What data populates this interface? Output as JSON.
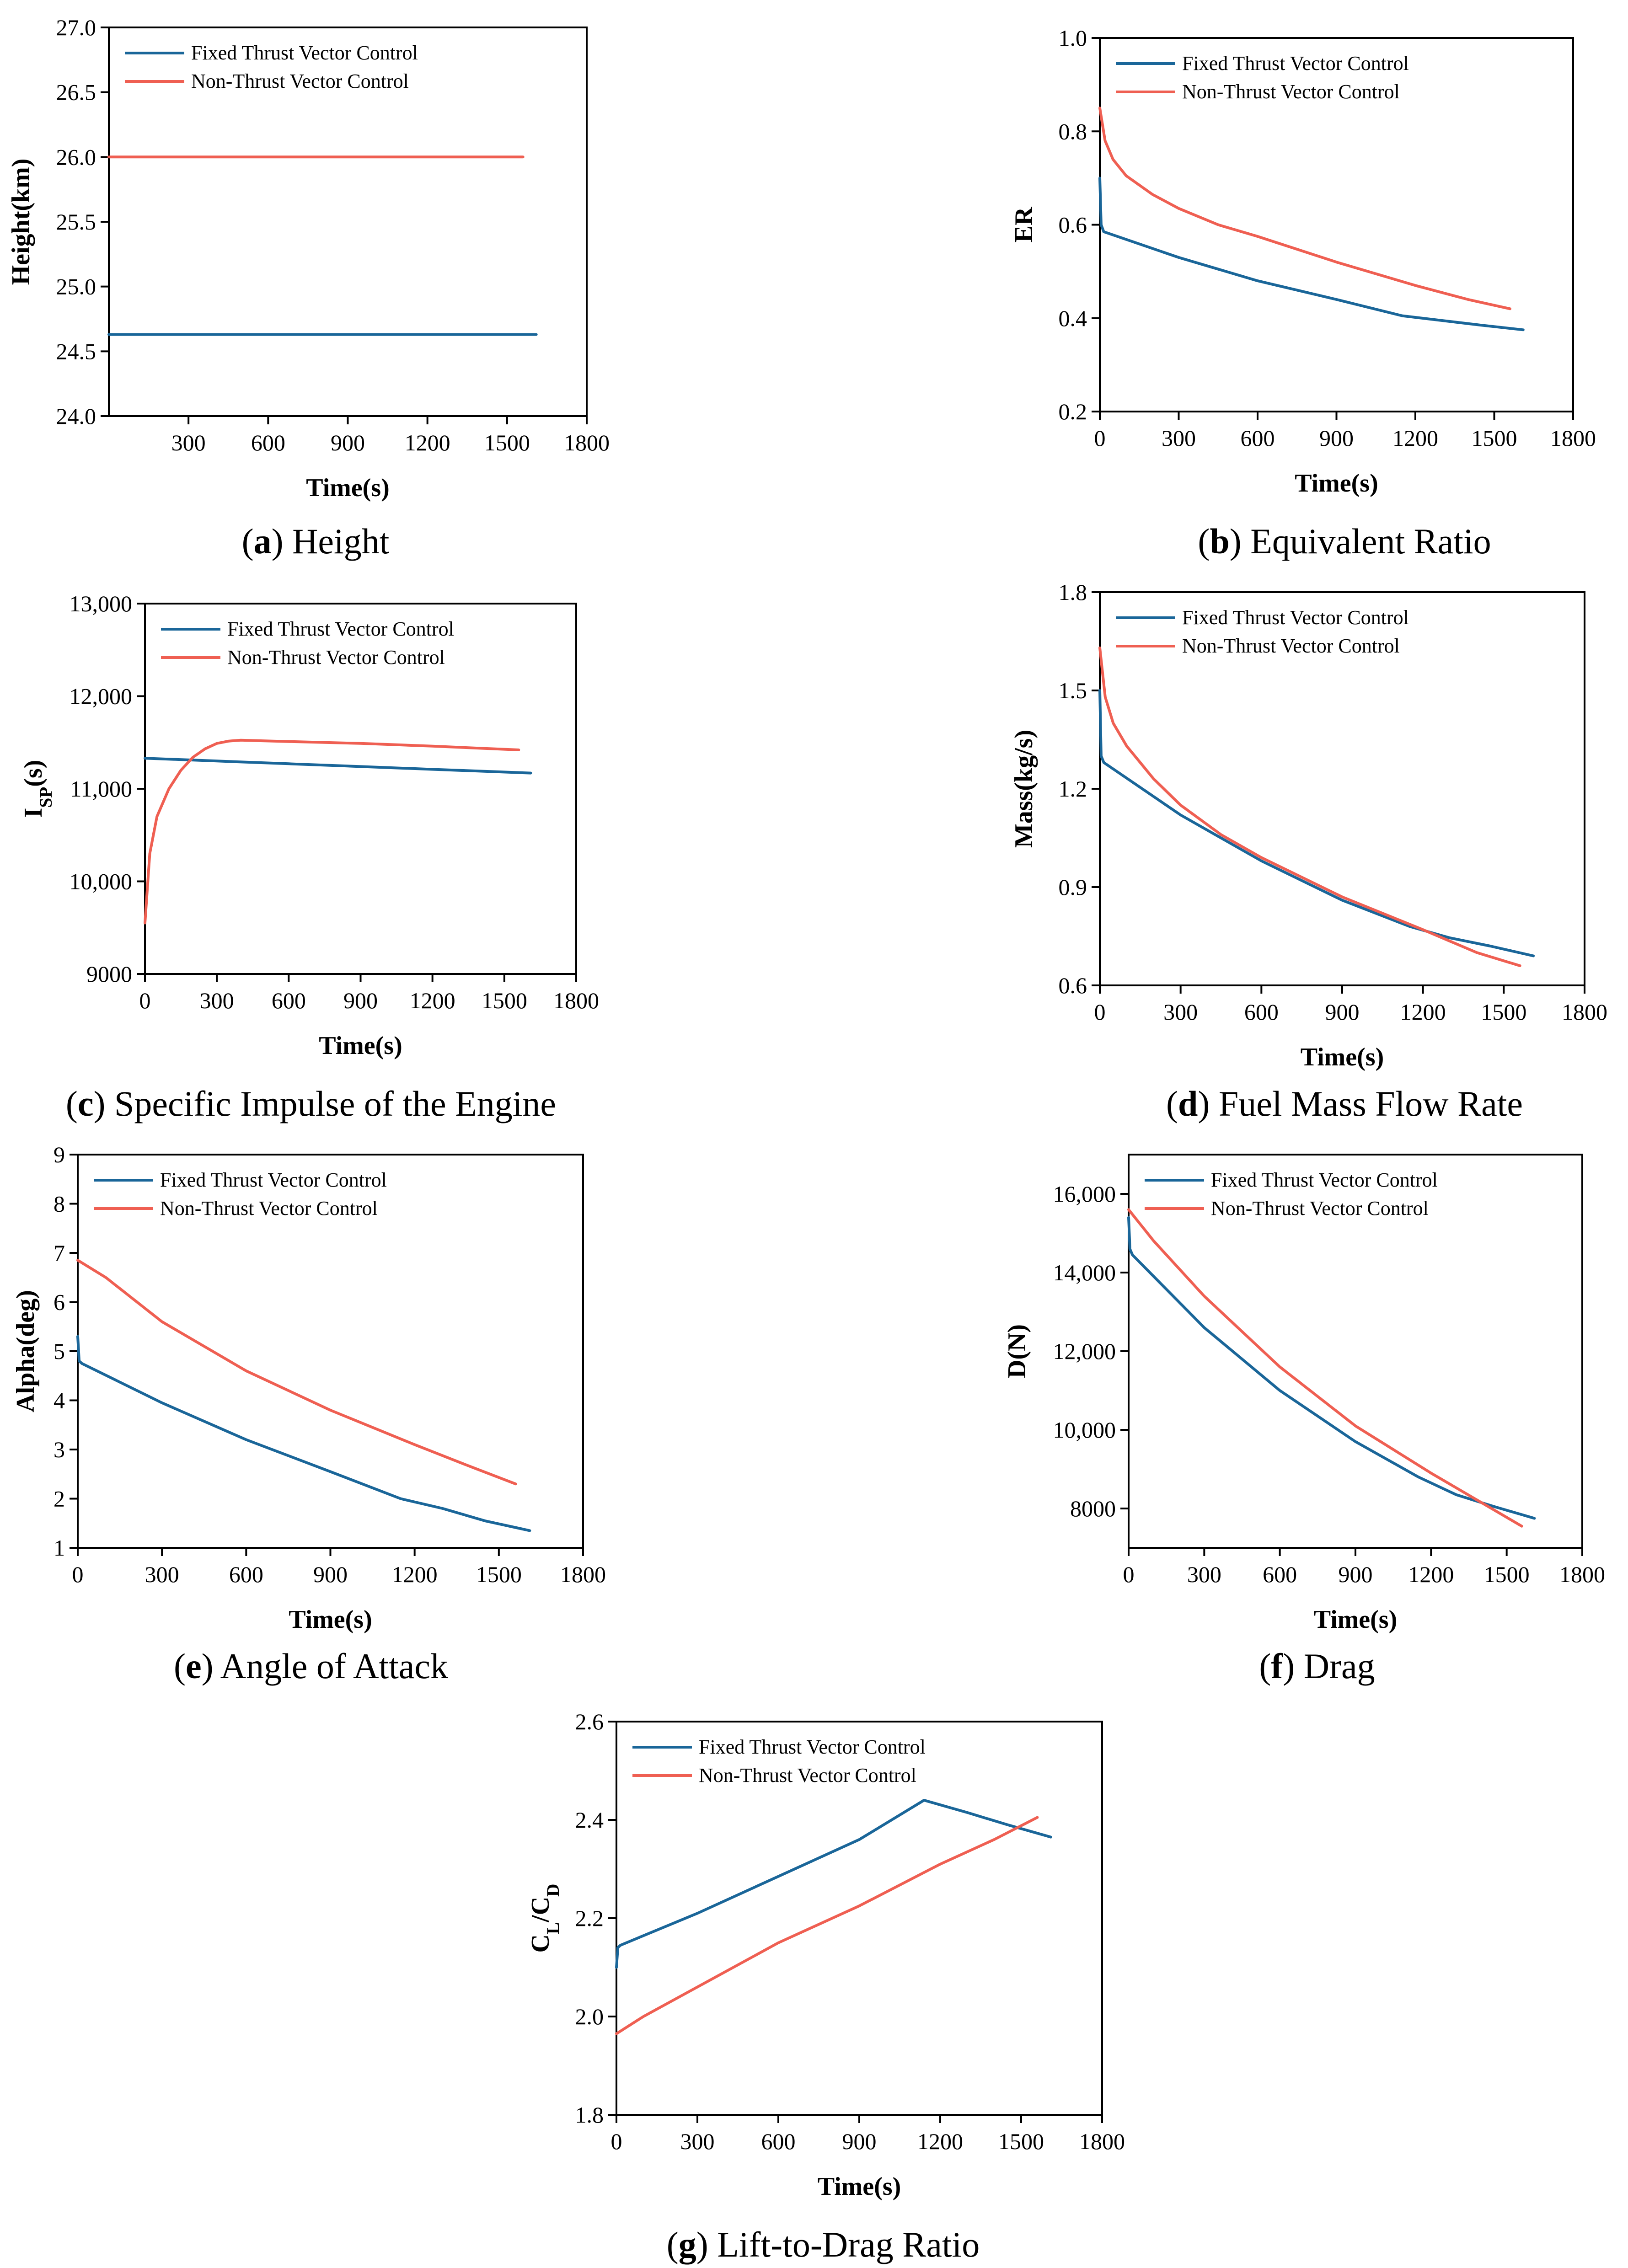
{
  "legend_labels": [
    "Fixed Thrust Vector Control",
    "Non-Thrust Vector Control"
  ],
  "colors": {
    "fixed": "#1a6699",
    "non": "#ef5f52",
    "axis": "#000000"
  },
  "chart_data": [
    {
      "id": "a",
      "type": "line",
      "caption_letter": "(a)",
      "caption_text": " Height",
      "xlabel": "Time(s)",
      "ylabel": "Height(km)",
      "xlim": [
        0,
        1800
      ],
      "ylim": [
        24.0,
        27.0
      ],
      "xticks": [
        {
          "v": 300,
          "label": "300"
        },
        {
          "v": 600,
          "label": "600"
        },
        {
          "v": 900,
          "label": "900"
        },
        {
          "v": 1200,
          "label": "1200"
        },
        {
          "v": 1500,
          "label": "1500"
        },
        {
          "v": 1800,
          "label": "1800"
        }
      ],
      "yticks": [
        {
          "v": 24.0,
          "label": "24.0"
        },
        {
          "v": 24.5,
          "label": "24.5"
        },
        {
          "v": 25.0,
          "label": "25.0"
        },
        {
          "v": 25.5,
          "label": "25.5"
        },
        {
          "v": 26.0,
          "label": "26.0"
        },
        {
          "v": 26.5,
          "label": "26.5"
        },
        {
          "v": 27.0,
          "label": "27.0"
        }
      ],
      "legend": "top-left",
      "series": [
        {
          "name": "Fixed Thrust Vector Control",
          "x": [
            0,
            1610
          ],
          "y": [
            24.63,
            24.63
          ]
        },
        {
          "name": "Non-Thrust Vector Control",
          "x": [
            0,
            1560
          ],
          "y": [
            26.0,
            26.0
          ]
        }
      ]
    },
    {
      "id": "b",
      "type": "line",
      "caption_letter": "(b)",
      "caption_text": " Equivalent Ratio",
      "xlabel": "Time(s)",
      "ylabel": "ER",
      "xlim": [
        0,
        1800
      ],
      "ylim": [
        0.2,
        1.0
      ],
      "xticks": [
        {
          "v": 0,
          "label": "0"
        },
        {
          "v": 300,
          "label": "300"
        },
        {
          "v": 600,
          "label": "600"
        },
        {
          "v": 900,
          "label": "900"
        },
        {
          "v": 1200,
          "label": "1200"
        },
        {
          "v": 1500,
          "label": "1500"
        },
        {
          "v": 1800,
          "label": "1800"
        }
      ],
      "yticks": [
        {
          "v": 0.2,
          "label": "0.2"
        },
        {
          "v": 0.4,
          "label": "0.4"
        },
        {
          "v": 0.6,
          "label": "0.6"
        },
        {
          "v": 0.8,
          "label": "0.8"
        },
        {
          "v": 1.0,
          "label": "1.0"
        }
      ],
      "legend": "top-left",
      "series": [
        {
          "name": "Fixed Thrust Vector Control",
          "x": [
            0,
            5,
            15,
            300,
            600,
            900,
            1150,
            1300,
            1450,
            1610
          ],
          "y": [
            0.7,
            0.6,
            0.585,
            0.53,
            0.48,
            0.44,
            0.405,
            0.395,
            0.385,
            0.375
          ]
        },
        {
          "name": "Non-Thrust Vector Control",
          "x": [
            0,
            20,
            50,
            100,
            200,
            300,
            450,
            600,
            900,
            1200,
            1400,
            1560
          ],
          "y": [
            0.85,
            0.78,
            0.74,
            0.705,
            0.665,
            0.635,
            0.6,
            0.575,
            0.52,
            0.47,
            0.44,
            0.42
          ]
        }
      ]
    },
    {
      "id": "c",
      "type": "line",
      "caption_letter": "(c)",
      "caption_text": " Specific Impulse of the Engine",
      "xlabel": "Time(s)",
      "ylabel": "I",
      "ylabel_sub": "SP",
      "ylabel_tail": "(s)",
      "xlim": [
        0,
        1800
      ],
      "ylim": [
        9000,
        13000
      ],
      "xticks": [
        {
          "v": 0,
          "label": "0"
        },
        {
          "v": 300,
          "label": "300"
        },
        {
          "v": 600,
          "label": "600"
        },
        {
          "v": 900,
          "label": "900"
        },
        {
          "v": 1200,
          "label": "1200"
        },
        {
          "v": 1500,
          "label": "1500"
        },
        {
          "v": 1800,
          "label": "1800"
        }
      ],
      "yticks": [
        {
          "v": 9000,
          "label": "9000"
        },
        {
          "v": 10000,
          "label": "10,000"
        },
        {
          "v": 11000,
          "label": "11,000"
        },
        {
          "v": 12000,
          "label": "12,000"
        },
        {
          "v": 13000,
          "label": "13,000"
        }
      ],
      "legend": "top-left",
      "series": [
        {
          "name": "Fixed Thrust Vector Control",
          "x": [
            0,
            300,
            600,
            900,
            1200,
            1610
          ],
          "y": [
            11330,
            11300,
            11270,
            11240,
            11210,
            11170
          ]
        },
        {
          "name": "Non-Thrust Vector Control",
          "x": [
            0,
            20,
            50,
            100,
            150,
            200,
            250,
            300,
            350,
            400,
            600,
            900,
            1200,
            1560
          ],
          "y": [
            9550,
            10300,
            10700,
            11000,
            11200,
            11340,
            11430,
            11490,
            11515,
            11525,
            11510,
            11490,
            11460,
            11420
          ]
        }
      ]
    },
    {
      "id": "d",
      "type": "line",
      "caption_letter": "(d)",
      "caption_text": " Fuel Mass Flow Rate",
      "xlabel": "Time(s)",
      "ylabel": "Mass(kg/s)",
      "xlim": [
        0,
        1800
      ],
      "ylim": [
        0.6,
        1.8
      ],
      "xticks": [
        {
          "v": 0,
          "label": "0"
        },
        {
          "v": 300,
          "label": "300"
        },
        {
          "v": 600,
          "label": "600"
        },
        {
          "v": 900,
          "label": "900"
        },
        {
          "v": 1200,
          "label": "1200"
        },
        {
          "v": 1500,
          "label": "1500"
        },
        {
          "v": 1800,
          "label": "1800"
        }
      ],
      "yticks": [
        {
          "v": 0.6,
          "label": "0.6"
        },
        {
          "v": 0.9,
          "label": "0.9"
        },
        {
          "v": 1.2,
          "label": "1.2"
        },
        {
          "v": 1.5,
          "label": "1.5"
        },
        {
          "v": 1.8,
          "label": "1.8"
        }
      ],
      "legend": "top-left",
      "series": [
        {
          "name": "Fixed Thrust Vector Control",
          "x": [
            0,
            5,
            15,
            300,
            600,
            900,
            1150,
            1300,
            1450,
            1610
          ],
          "y": [
            1.5,
            1.3,
            1.28,
            1.12,
            0.98,
            0.86,
            0.78,
            0.745,
            0.72,
            0.69
          ]
        },
        {
          "name": "Non-Thrust Vector Control",
          "x": [
            0,
            20,
            50,
            100,
            200,
            300,
            450,
            600,
            900,
            1200,
            1400,
            1560
          ],
          "y": [
            1.63,
            1.48,
            1.4,
            1.33,
            1.23,
            1.15,
            1.06,
            0.99,
            0.87,
            0.77,
            0.7,
            0.66
          ]
        }
      ]
    },
    {
      "id": "e",
      "type": "line",
      "caption_letter": "(e)",
      "caption_text": " Angle of Attack",
      "xlabel": "Time(s)",
      "ylabel": "Alpha(deg)",
      "xlim": [
        0,
        1800
      ],
      "ylim": [
        1,
        9
      ],
      "xticks": [
        {
          "v": 0,
          "label": "0"
        },
        {
          "v": 300,
          "label": "300"
        },
        {
          "v": 600,
          "label": "600"
        },
        {
          "v": 900,
          "label": "900"
        },
        {
          "v": 1200,
          "label": "1200"
        },
        {
          "v": 1500,
          "label": "1500"
        },
        {
          "v": 1800,
          "label": "1800"
        }
      ],
      "yticks": [
        {
          "v": 1,
          "label": "1"
        },
        {
          "v": 2,
          "label": "2"
        },
        {
          "v": 3,
          "label": "3"
        },
        {
          "v": 4,
          "label": "4"
        },
        {
          "v": 5,
          "label": "5"
        },
        {
          "v": 6,
          "label": "6"
        },
        {
          "v": 7,
          "label": "7"
        },
        {
          "v": 8,
          "label": "8"
        },
        {
          "v": 9,
          "label": "9"
        }
      ],
      "legend": "top-left",
      "series": [
        {
          "name": "Fixed Thrust Vector Control",
          "x": [
            0,
            5,
            15,
            300,
            600,
            900,
            1150,
            1300,
            1450,
            1610
          ],
          "y": [
            5.3,
            4.8,
            4.75,
            3.95,
            3.2,
            2.55,
            2.0,
            1.8,
            1.55,
            1.35
          ]
        },
        {
          "name": "Non-Thrust Vector Control",
          "x": [
            0,
            100,
            300,
            600,
            900,
            1200,
            1400,
            1560
          ],
          "y": [
            6.85,
            6.5,
            5.6,
            4.6,
            3.8,
            3.1,
            2.65,
            2.3
          ]
        }
      ]
    },
    {
      "id": "f",
      "type": "line",
      "caption_letter": "(f)",
      "caption_text": " Drag",
      "xlabel": "Time(s)",
      "ylabel": "D(N)",
      "xlim": [
        0,
        1800
      ],
      "ylim": [
        7000,
        17000
      ],
      "xticks": [
        {
          "v": 0,
          "label": "0"
        },
        {
          "v": 300,
          "label": "300"
        },
        {
          "v": 600,
          "label": "600"
        },
        {
          "v": 900,
          "label": "900"
        },
        {
          "v": 1200,
          "label": "1200"
        },
        {
          "v": 1500,
          "label": "1500"
        },
        {
          "v": 1800,
          "label": "1800"
        }
      ],
      "yticks": [
        {
          "v": 8000,
          "label": "8000"
        },
        {
          "v": 10000,
          "label": "10,000"
        },
        {
          "v": 12000,
          "label": "12,000"
        },
        {
          "v": 14000,
          "label": "14,000"
        },
        {
          "v": 16000,
          "label": "16,000"
        }
      ],
      "legend": "top-left",
      "series": [
        {
          "name": "Fixed Thrust Vector Control",
          "x": [
            0,
            5,
            15,
            300,
            600,
            900,
            1150,
            1300,
            1450,
            1610
          ],
          "y": [
            15400,
            14600,
            14450,
            12600,
            11000,
            9700,
            8800,
            8350,
            8050,
            7750
          ]
        },
        {
          "name": "Non-Thrust Vector Control",
          "x": [
            0,
            100,
            300,
            600,
            900,
            1200,
            1400,
            1560
          ],
          "y": [
            15600,
            14800,
            13400,
            11600,
            10100,
            8900,
            8150,
            7550
          ]
        }
      ]
    },
    {
      "id": "g",
      "type": "line",
      "caption_letter": "(g)",
      "caption_text": " Lift-to-Drag Ratio",
      "xlabel": "Time(s)",
      "ylabel": "C",
      "ylabel_sub": "L",
      "ylabel_mid": "/C",
      "ylabel_sub2": "D",
      "xlim": [
        0,
        1800
      ],
      "ylim": [
        1.8,
        2.6
      ],
      "xticks": [
        {
          "v": 0,
          "label": "0"
        },
        {
          "v": 300,
          "label": "300"
        },
        {
          "v": 600,
          "label": "600"
        },
        {
          "v": 900,
          "label": "900"
        },
        {
          "v": 1200,
          "label": "1200"
        },
        {
          "v": 1500,
          "label": "1500"
        },
        {
          "v": 1800,
          "label": "1800"
        }
      ],
      "yticks": [
        {
          "v": 1.8,
          "label": "1.8"
        },
        {
          "v": 2.0,
          "label": "2.0"
        },
        {
          "v": 2.2,
          "label": "2.2"
        },
        {
          "v": 2.4,
          "label": "2.4"
        },
        {
          "v": 2.6,
          "label": "2.6"
        }
      ],
      "legend": "top-left",
      "series": [
        {
          "name": "Fixed Thrust Vector Control",
          "x": [
            0,
            5,
            15,
            300,
            600,
            900,
            1140,
            1300,
            1450,
            1610
          ],
          "y": [
            2.1,
            2.14,
            2.145,
            2.21,
            2.285,
            2.36,
            2.44,
            2.415,
            2.39,
            2.365
          ]
        },
        {
          "name": "Non-Thrust Vector Control",
          "x": [
            0,
            100,
            300,
            600,
            900,
            1200,
            1400,
            1560
          ],
          "y": [
            1.965,
            2.0,
            2.06,
            2.15,
            2.225,
            2.31,
            2.36,
            2.405
          ]
        }
      ]
    }
  ]
}
